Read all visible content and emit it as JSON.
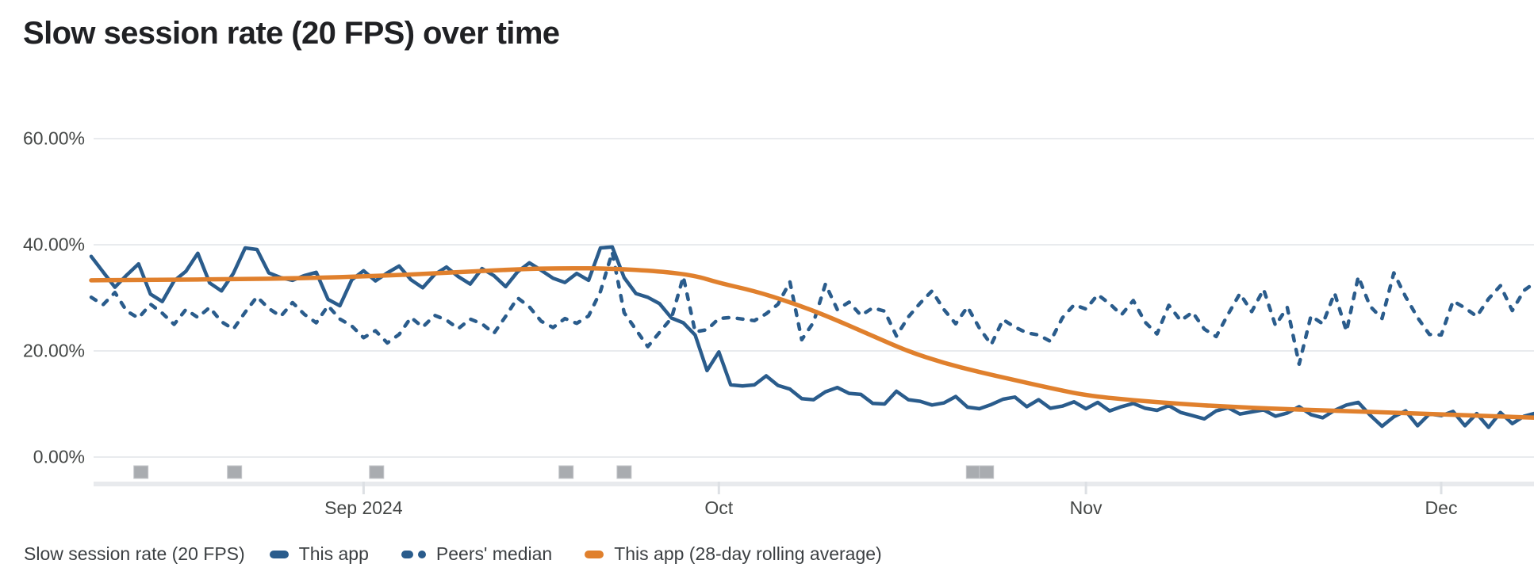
{
  "header": {
    "title": "Slow session rate (20 FPS) over time"
  },
  "chart_data": {
    "type": "line",
    "title": "Slow session rate (20 FPS) over time",
    "x_axis": {
      "start_date": "2024-08-09",
      "interval": "daily",
      "ticks": [
        {
          "label": "Sep 2024",
          "day": 23
        },
        {
          "label": "Oct",
          "day": 53
        },
        {
          "label": "Nov",
          "day": 84
        },
        {
          "label": "Dec",
          "day": 114
        }
      ]
    },
    "y_axis": {
      "unit": "%",
      "tick_values": [
        0,
        20,
        40,
        60
      ],
      "ticks": [
        "0.00%",
        "20.00%",
        "40.00%",
        "60.00%"
      ],
      "range": [
        0,
        66
      ],
      "gridline_color": "#e9ebee"
    },
    "series": [
      {
        "name": "This app",
        "style": "solid",
        "color": "#2a5c8c",
        "values": [
          37.8,
          34.9,
          32.0,
          34.3,
          36.4,
          30.7,
          29.3,
          33.2,
          35.0,
          38.4,
          32.8,
          31.3,
          34.6,
          39.4,
          39.1,
          34.7,
          33.8,
          33.3,
          34.2,
          34.8,
          29.7,
          28.5,
          33.4,
          35.1,
          33.2,
          34.7,
          36.0,
          33.4,
          31.9,
          34.4,
          35.8,
          34.0,
          32.6,
          35.5,
          34.2,
          32.1,
          34.9,
          36.6,
          35.2,
          33.7,
          32.9,
          34.6,
          33.3,
          39.4,
          39.6,
          33.8,
          30.8,
          30.1,
          28.9,
          26.2,
          25.3,
          23.0,
          16.3,
          19.8,
          13.6,
          13.4,
          13.6,
          15.3,
          13.5,
          12.8,
          11.0,
          10.8,
          12.3,
          13.1,
          12.0,
          11.8,
          10.1,
          10.0,
          12.4,
          10.8,
          10.5,
          9.8,
          10.2,
          11.4,
          9.4,
          9.1,
          9.9,
          10.9,
          11.3,
          9.5,
          10.8,
          9.2,
          9.6,
          10.4,
          9.1,
          10.3,
          8.7,
          9.5,
          10.1,
          9.2,
          8.8,
          9.7,
          8.4,
          7.8,
          7.2,
          8.7,
          9.3,
          8.1,
          8.5,
          8.9,
          7.7,
          8.3,
          9.5,
          8.0,
          7.4,
          8.8,
          9.8,
          10.3,
          7.9,
          5.8,
          7.6,
          8.7,
          5.9,
          8.1,
          7.8,
          8.6,
          5.9,
          8.2,
          5.6,
          8.4,
          6.3,
          7.7,
          8.3
        ]
      },
      {
        "name": "Peers' median",
        "style": "dashed",
        "color": "#2a5c8c",
        "values": [
          30.1,
          28.7,
          31.0,
          27.5,
          26.2,
          28.8,
          27.1,
          25.0,
          27.8,
          26.3,
          28.2,
          25.5,
          24.1,
          27.3,
          30.2,
          28.0,
          26.5,
          29.1,
          26.9,
          25.3,
          28.5,
          26.0,
          24.7,
          22.5,
          23.8,
          21.5,
          23.1,
          26.3,
          24.5,
          26.7,
          25.8,
          24.2,
          26.0,
          25.1,
          23.3,
          26.5,
          30.0,
          28.3,
          25.6,
          24.4,
          26.1,
          25.2,
          26.6,
          31.2,
          38.6,
          27.2,
          24.0,
          20.8,
          23.5,
          26.2,
          34.0,
          23.6,
          24.0,
          26.1,
          26.3,
          26.0,
          25.7,
          27.0,
          28.8,
          33.0,
          22.1,
          25.4,
          32.6,
          27.8,
          29.2,
          26.7,
          28.1,
          27.5,
          22.8,
          26.4,
          29.0,
          31.3,
          27.8,
          25.1,
          28.3,
          24.3,
          21.2,
          25.9,
          24.5,
          23.4,
          23.0,
          21.8,
          26.2,
          28.7,
          27.9,
          30.6,
          28.9,
          26.8,
          29.5,
          25.4,
          23.2,
          28.6,
          25.7,
          27.3,
          24.1,
          22.7,
          26.9,
          30.8,
          27.4,
          31.6,
          24.8,
          28.2,
          17.5,
          26.6,
          25.1,
          30.9,
          23.7,
          34.0,
          28.4,
          26.1,
          34.7,
          30.2,
          26.3,
          23.1,
          23.0,
          29.4,
          28.1,
          26.5,
          29.8,
          32.3,
          27.6,
          31.4,
          33.0
        ]
      },
      {
        "name": "This app (28-day rolling average)",
        "style": "solid",
        "color": "#e0802d",
        "points": [
          [
            0,
            33.3
          ],
          [
            6,
            33.4
          ],
          [
            12,
            33.5
          ],
          [
            18,
            33.7
          ],
          [
            24,
            34.1
          ],
          [
            30,
            34.7
          ],
          [
            36,
            35.4
          ],
          [
            40,
            35.6
          ],
          [
            44,
            35.5
          ],
          [
            48,
            35.0
          ],
          [
            51,
            34.2
          ],
          [
            53,
            32.8
          ],
          [
            56,
            31.3
          ],
          [
            59,
            29.2
          ],
          [
            62,
            26.7
          ],
          [
            66,
            22.8
          ],
          [
            69,
            19.9
          ],
          [
            72,
            17.7
          ],
          [
            75,
            16.0
          ],
          [
            78,
            14.5
          ],
          [
            81,
            13.0
          ],
          [
            84,
            11.6
          ],
          [
            88,
            10.7
          ],
          [
            92,
            10.0
          ],
          [
            96,
            9.5
          ],
          [
            100,
            9.1
          ],
          [
            104,
            8.8
          ],
          [
            108,
            8.5
          ],
          [
            112,
            8.2
          ],
          [
            116,
            7.9
          ],
          [
            122,
            7.4
          ]
        ]
      }
    ],
    "release_markers": {
      "color": "#a9acb0",
      "days": [
        4.2,
        12.1,
        24.1,
        40.1,
        45.0,
        74.5,
        75.6
      ]
    },
    "legend": {
      "title": "Slow session rate (20 FPS)",
      "position": "bottom",
      "items": [
        {
          "label": "This app",
          "style": "solid",
          "color": "#2a5c8c"
        },
        {
          "label": "Peers' median",
          "style": "dashed",
          "color": "#2a5c8c"
        },
        {
          "label": "This app (28-day rolling average)",
          "style": "solid",
          "color": "#e0802d"
        }
      ]
    }
  }
}
